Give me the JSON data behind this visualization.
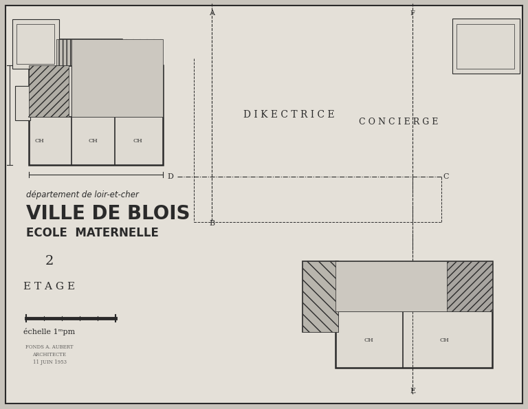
{
  "bg_color": "#c8c4bc",
  "paper_color": "#e4e0d8",
  "line_color": "#2a2a2a",
  "title_dept": "département de loir-et-cher",
  "title_city": "VILLE DE BLOIS",
  "title_school": "ECOLE  MATERNELLE",
  "label_etage": "E T A G E",
  "label_echelle": "échelle 1ᵐpm",
  "label_number": "2",
  "label_directrice": "D I K E C T R I C E",
  "label_concierge": "C O N C I E R G E",
  "axis_a": "A",
  "axis_b": "B",
  "axis_c": "C",
  "axis_d": "D",
  "axis_e": "E",
  "axis_f": "F"
}
